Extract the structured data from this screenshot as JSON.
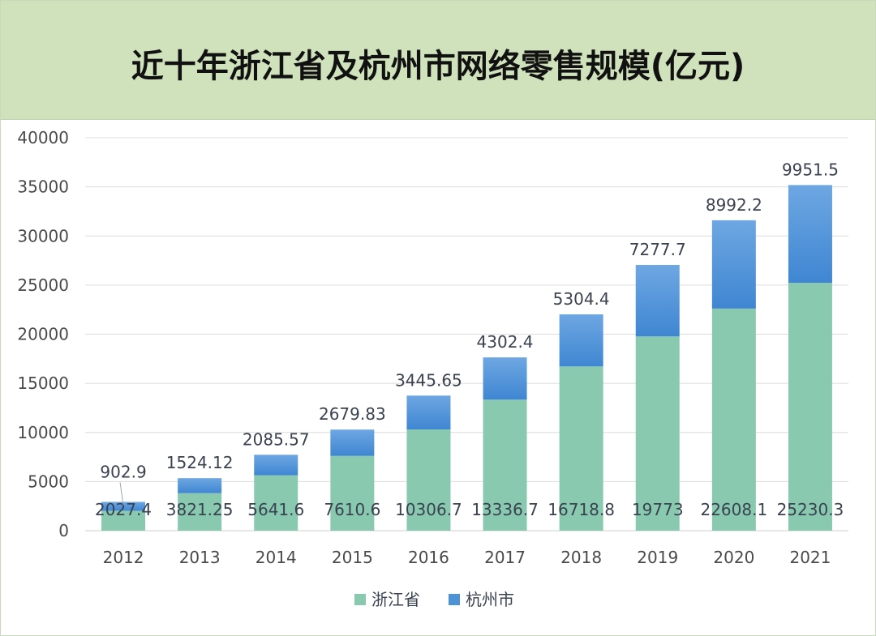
{
  "chart_data": {
    "type": "bar",
    "stacked": true,
    "title": "近十年浙江省及杭州市网络零售规模(亿元)",
    "categories": [
      "2012",
      "2013",
      "2014",
      "2015",
      "2016",
      "2017",
      "2018",
      "2019",
      "2020",
      "2021"
    ],
    "series": [
      {
        "name": "浙江省",
        "color": "#88c9b0",
        "values": [
          2027.4,
          3821.25,
          5641.6,
          7610.6,
          10306.7,
          13336.7,
          16718.8,
          19773,
          22608.1,
          25230.3
        ],
        "labels": [
          "2027.4",
          "3821.25",
          "5641.6",
          "7610.6",
          "10306.7",
          "13336.7",
          "16718.8",
          "19773",
          "22608.1",
          "25230.3"
        ]
      },
      {
        "name": "杭州市",
        "color": "#4d93d8",
        "values": [
          902.9,
          1524.12,
          2085.57,
          2679.83,
          3445.65,
          4302.4,
          5304.4,
          7277.7,
          8992.2,
          9951.5
        ],
        "labels": [
          "902.9",
          "1524.12",
          "2085.57",
          "2679.83",
          "3445.65",
          "4302.4",
          "5304.4",
          "7277.7",
          "8992.2",
          "9951.5"
        ]
      }
    ],
    "y_ticks": [
      "0",
      "5000",
      "10000",
      "15000",
      "20000",
      "25000",
      "30000",
      "35000",
      "40000"
    ],
    "ylim": [
      0,
      40000
    ],
    "xlabel": "",
    "ylabel": "",
    "grid": true,
    "legend": "bottom-center"
  }
}
